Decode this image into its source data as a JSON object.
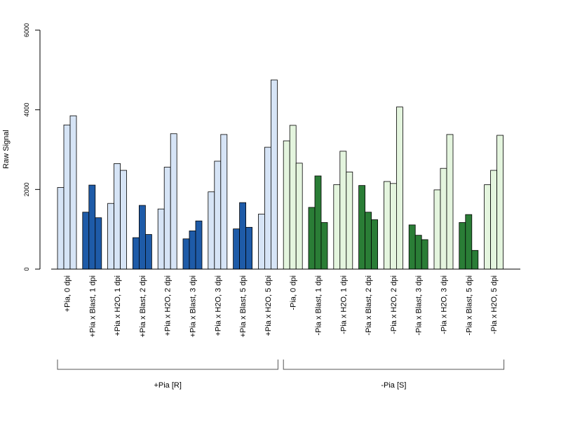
{
  "chart_data": {
    "type": "bar",
    "ylabel": "Raw Signal",
    "ylim": [
      0,
      6000
    ],
    "yticks": [
      0,
      2000,
      4000,
      6000
    ],
    "grid": false,
    "categories": [
      "+Pia, 0 dpi",
      "+Pia x Blast, 1 dpi",
      "+Pia x H2O, 1 dpi",
      "+Pia x Blast, 2 dpi",
      "+Pia x H2O, 2 dpi",
      "+Pia x Blast, 3 dpi",
      "+Pia x H2O, 3 dpi",
      "+Pia x Blast, 5 dpi",
      "+Pia x H2O, 5 dpi",
      "-Pia, 0 dpi",
      "-Pia x Blast, 1 dpi",
      "-Pia x H2O, 1 dpi",
      "-Pia x Blast, 2 dpi",
      "-Pia x H2O, 2 dpi",
      "-Pia x Blast, 3 dpi",
      "-Pia x H2O, 3 dpi",
      "-Pia x Blast, 5 dpi",
      "-Pia x H2O, 5 dpi"
    ],
    "replicates": [
      [
        2050,
        3620,
        3850
      ],
      [
        1430,
        2110,
        1290
      ],
      [
        1650,
        2650,
        2480
      ],
      [
        790,
        1600,
        870
      ],
      [
        1510,
        2560,
        3400
      ],
      [
        760,
        960,
        1210
      ],
      [
        1940,
        2710,
        3380
      ],
      [
        1010,
        1670,
        1050
      ],
      [
        1380,
        3060,
        4750
      ],
      [
        3220,
        3610,
        2660
      ],
      [
        1550,
        2340,
        1170
      ],
      [
        2120,
        2960,
        2440
      ],
      [
        2100,
        1430,
        1240
      ],
      [
        2200,
        2150,
        4070
      ],
      [
        1110,
        850,
        740
      ],
      [
        1990,
        2530,
        3380
      ],
      [
        1170,
        1370,
        470
      ],
      [
        2120,
        2480,
        3360
      ]
    ],
    "bar_colors": [
      "#d6e4f6",
      "#1e5ba8",
      "#d6e4f6",
      "#1e5ba8",
      "#d6e4f6",
      "#1e5ba8",
      "#d6e4f6",
      "#1e5ba8",
      "#d6e4f6",
      "#e4f5de",
      "#2a7d36",
      "#e4f5de",
      "#2a7d36",
      "#e4f5de",
      "#2a7d36",
      "#e4f5de",
      "#2a7d36",
      "#e4f5de"
    ],
    "groups": [
      {
        "label": "+Pia [R]",
        "from": 0,
        "to": 8
      },
      {
        "label": "-Pia [S]",
        "from": 9,
        "to": 17
      }
    ]
  }
}
